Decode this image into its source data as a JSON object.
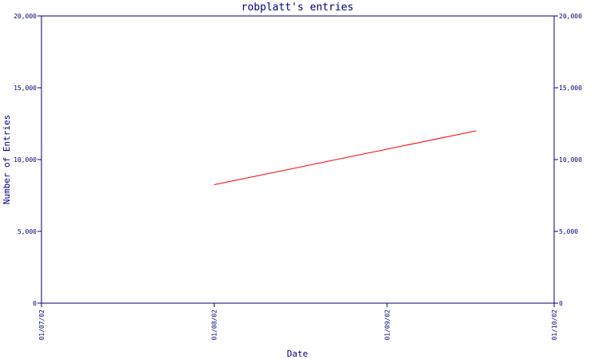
{
  "chart_data": {
    "type": "line",
    "title": "robplatt's entries",
    "xlabel": "Date",
    "ylabel": "Number of Entries",
    "x_ticks": [
      "01/07/02",
      "01/08/02",
      "01/09/02",
      "01/10/02"
    ],
    "y_ticks": [
      "0",
      "5,000",
      "10,000",
      "15,000",
      "20,000"
    ],
    "ylim": [
      0,
      20000
    ],
    "xlim": [
      "2002-07-01",
      "2002-10-01"
    ],
    "grid": false,
    "legend": "none",
    "series": [
      {
        "points": [
          {
            "x": "2002-08-01",
            "y": 8250
          },
          {
            "x": "2002-09-17",
            "y": 12000
          }
        ]
      }
    ],
    "colors": {
      "axis": "#000080",
      "series": "#ff0000",
      "text": "#000080"
    }
  }
}
